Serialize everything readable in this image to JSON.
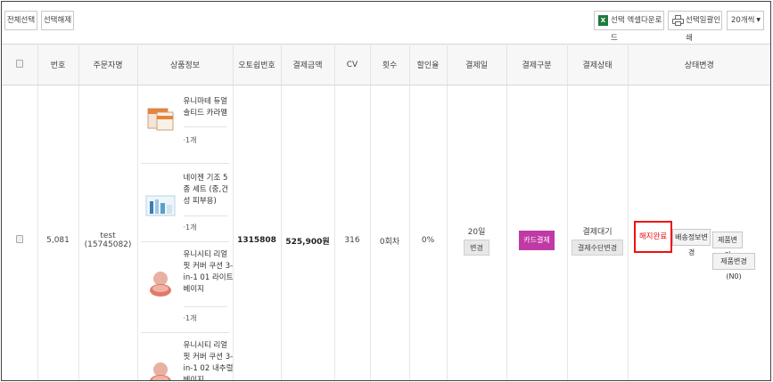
{
  "toolbar": {
    "select_all": "전체선택",
    "deselect": "선택해제",
    "excel_download": "선택 엑셀다운로드",
    "batch_print": "선택일괄인쇄",
    "page_size": "20개씩"
  },
  "table": {
    "headers": [
      "번호",
      "주문자명",
      "상품정보",
      "오토쉽번호",
      "결제금액",
      "CV",
      "횟수",
      "할인율",
      "결제일",
      "결제구분",
      "결제상태",
      "상태변경"
    ],
    "row": {
      "number": "5,081",
      "orderer_name": "test",
      "orderer_id": "(15745082)",
      "autoship_no": "1315808",
      "amount": "525,900원",
      "cv": "316",
      "count": "0회차",
      "discount": "0%",
      "pay_day": "20일",
      "pay_day_change": "변경",
      "pay_type": "카드결제",
      "pay_status": "결제대기",
      "pay_method_change": "결제수단변경",
      "actions": {
        "cancel_done": "해지완료",
        "shipping_change": "배송정보변경",
        "product_change": "제품변경",
        "product_change_n0": "제품변경(N0)"
      },
      "products": [
        {
          "name": "유니마테 듀얼 솔티드 카라멜",
          "qty": "1개",
          "icon": "box-product-icon"
        },
        {
          "name": "네이젠 기조 5종 세트 (중,건성 피부용)",
          "qty": "1개",
          "icon": "skincare-set-icon"
        },
        {
          "name": "유니시티 리얼 핏 커버 쿠션 3-in-1 01 라이트 베이지",
          "qty": "1개",
          "icon": "cushion-icon"
        },
        {
          "name": "유니시티 리얼 핏 커버 쿠션 3-in-1 02 내추럴 베이지",
          "qty": "",
          "icon": "cushion-icon"
        }
      ]
    }
  }
}
